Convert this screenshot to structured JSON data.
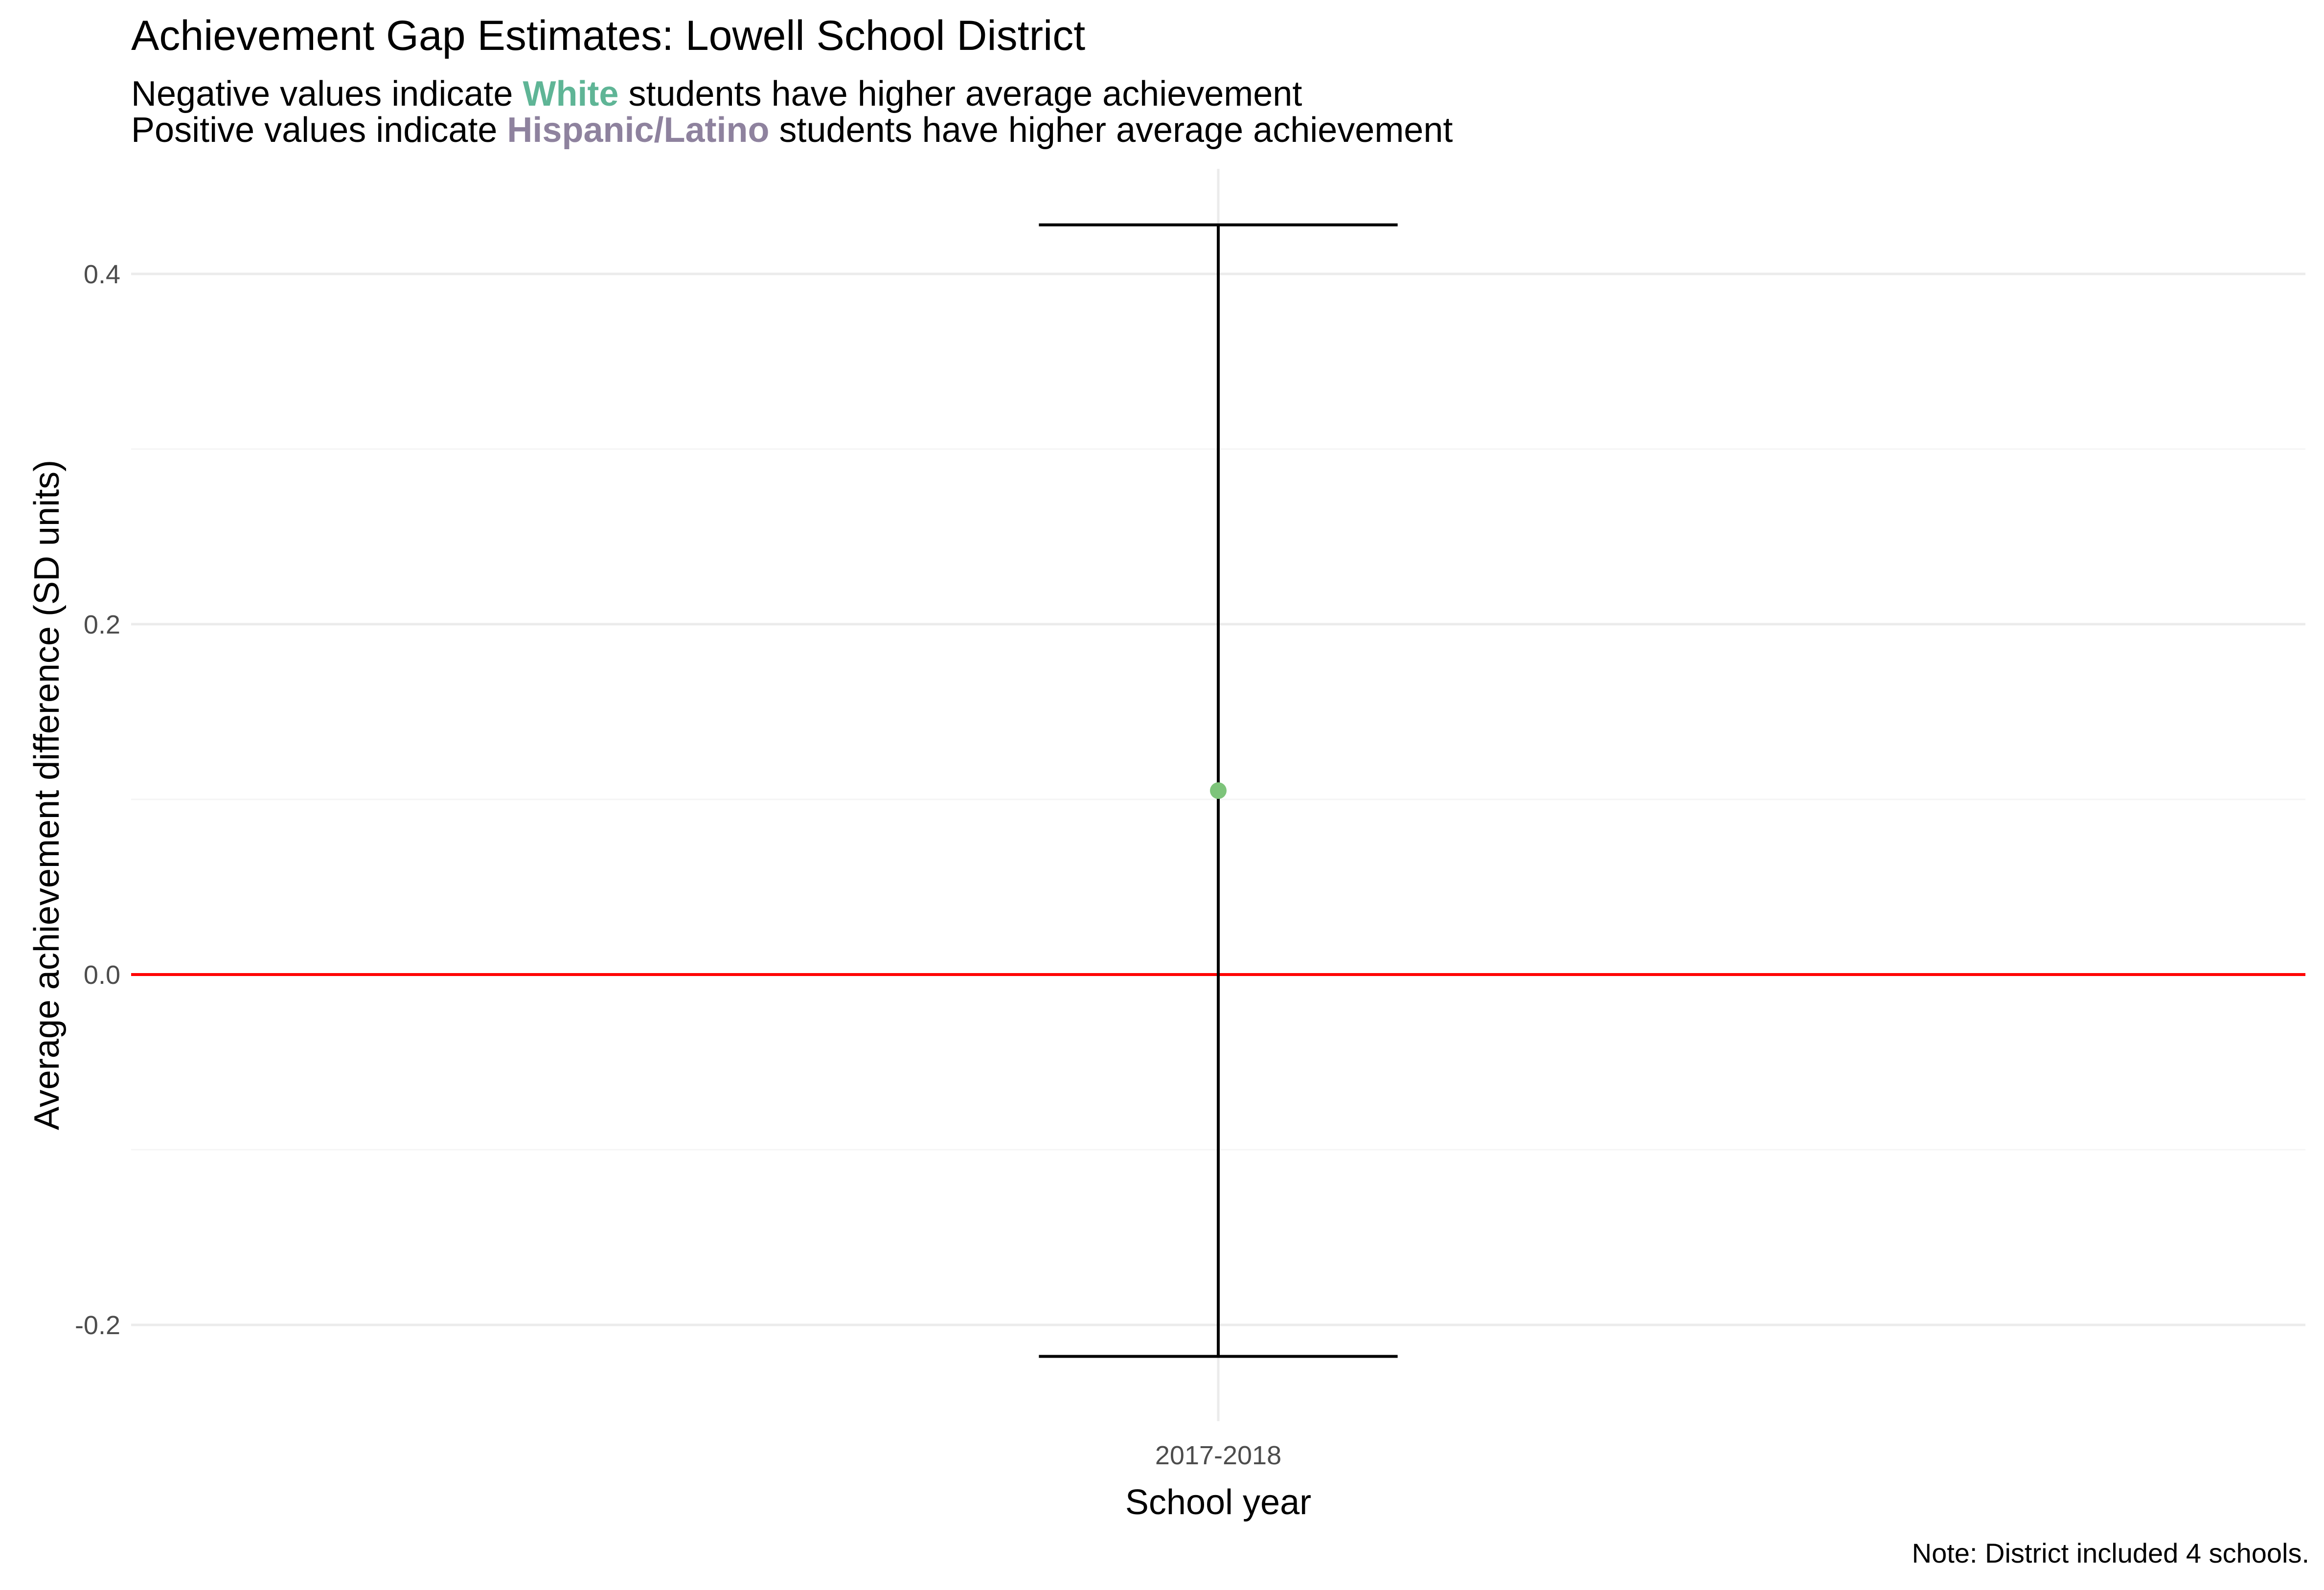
{
  "title": "Achievement Gap Estimates: Lowell School District",
  "subtitle": {
    "line1_before": "Negative values indicate ",
    "line1_highlight": "White",
    "line1_after": " students have higher average achievement",
    "line2_before": "Positive values indicate ",
    "line2_highlight": "Hispanic/Latino",
    "line2_after": " students have higher average achievement"
  },
  "caption": "Note: District included 4 schools.",
  "colors": {
    "white_group": "#5FB596",
    "hispanic_group": "#8E829E",
    "point": "#7DC47A",
    "reference_line": "#FF0000",
    "errorbar": "#000000",
    "grid_major": "#EBEBEB",
    "grid_minor": "#F5F5F5"
  },
  "chart_data": {
    "type": "scatter",
    "title": "Achievement Gap Estimates: Lowell School District",
    "xlabel": "School year",
    "ylabel": "Average achievement difference (SD units)",
    "categories": [
      "2017-2018"
    ],
    "values": [
      0.105
    ],
    "error_low": [
      -0.218
    ],
    "error_high": [
      0.428
    ],
    "ylim": [
      -0.255,
      0.46
    ],
    "yticks": [
      -0.2,
      0.0,
      0.2,
      0.4
    ],
    "ytick_labels": [
      "-0.2",
      "0.0",
      "0.2",
      "0.4"
    ],
    "reference_line": 0.0,
    "grid": true,
    "legend": "none"
  }
}
